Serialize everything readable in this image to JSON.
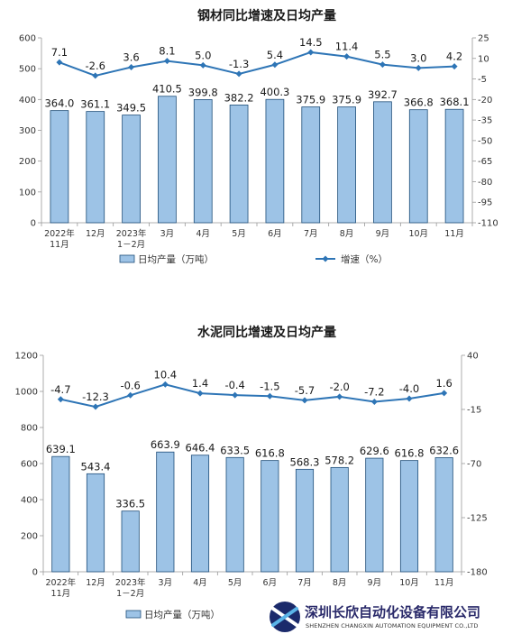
{
  "chart_data": [
    {
      "type": "bar+line",
      "title": "钢材同比增速及日均产量",
      "categories": [
        "2022年\n11月",
        "12月",
        "2023年\n1－2月",
        "3月",
        "4月",
        "5月",
        "6月",
        "7月",
        "8月",
        "9月",
        "10月",
        "11月"
      ],
      "series": [
        {
          "name": "日均产量（万吨）",
          "type": "bar",
          "axis": "left",
          "values": [
            364.0,
            361.1,
            349.5,
            410.5,
            399.8,
            382.2,
            400.3,
            375.9,
            375.9,
            392.7,
            366.8,
            368.1
          ],
          "labels": [
            "364.0",
            "361.1",
            "349.5",
            "410.5",
            "399.8",
            "382.2",
            "400.3",
            "375.9",
            "375.9",
            "392.7",
            "366.8",
            "368.1"
          ]
        },
        {
          "name": "增速（%）",
          "type": "line",
          "axis": "right",
          "values": [
            7.1,
            -2.6,
            3.6,
            8.1,
            5.0,
            -1.3,
            5.4,
            14.5,
            11.4,
            5.5,
            3.0,
            4.2
          ],
          "labels": [
            "7.1",
            "-2.6",
            "3.6",
            "8.1",
            "5.0",
            "-1.3",
            "5.4",
            "14.5",
            "11.4",
            "5.5",
            "3.0",
            "4.2"
          ]
        }
      ],
      "ylim_left": [
        0,
        600
      ],
      "yticks_left": [
        "0",
        "100",
        "200",
        "300",
        "400",
        "500",
        "600"
      ],
      "ylim_right": [
        -110,
        25
      ],
      "yticks_right": [
        "25",
        "10",
        "-5",
        "-20",
        "-35",
        "-50",
        "-65",
        "-80",
        "-95",
        "-110"
      ],
      "legend_position": "bottom",
      "colors": {
        "bar": "#9dc3e6",
        "bar_edge": "#1f4e79",
        "line": "#2e75b6"
      }
    },
    {
      "type": "bar+line",
      "title": "水泥同比增速及日均产量",
      "categories": [
        "2022年\n11月",
        "12月",
        "2023年\n1－2月",
        "3月",
        "4月",
        "5月",
        "6月",
        "7月",
        "8月",
        "9月",
        "10月",
        "11月"
      ],
      "series": [
        {
          "name": "日均产量（万吨）",
          "type": "bar",
          "axis": "left",
          "values": [
            639.1,
            543.4,
            336.5,
            663.9,
            646.4,
            633.5,
            616.8,
            568.3,
            578.2,
            629.6,
            616.8,
            632.6
          ],
          "labels": [
            "639.1",
            "543.4",
            "336.5",
            "663.9",
            "646.4",
            "633.5",
            "616.8",
            "568.3",
            "578.2",
            "629.6",
            "616.8",
            "632.6"
          ]
        },
        {
          "name": "",
          "type": "line",
          "axis": "right",
          "values": [
            -4.7,
            -12.3,
            -0.6,
            10.4,
            1.4,
            -0.4,
            -1.5,
            -5.7,
            -2.0,
            -7.2,
            -4.0,
            1.6
          ],
          "labels": [
            "-4.7",
            "-12.3",
            "-0.6",
            "10.4",
            "1.4",
            "-0.4",
            "-1.5",
            "-5.7",
            "-2.0",
            "-7.2",
            "-4.0",
            "1.6"
          ]
        }
      ],
      "ylim_left": [
        0,
        1200
      ],
      "yticks_left": [
        "0",
        "200",
        "400",
        "600",
        "800",
        "1000",
        "1200"
      ],
      "ylim_right": [
        -180,
        40
      ],
      "yticks_right": [
        "40",
        "-15",
        "-70",
        "-125",
        "-180"
      ],
      "legend_position": "bottom",
      "colors": {
        "bar": "#9dc3e6",
        "bar_edge": "#1f4e79",
        "line": "#2e75b6"
      }
    }
  ],
  "watermark": {
    "company_cn": "深圳长欣自动化设备有限公司",
    "company_en": "SHENZHEN CHANGXIN AUTOMATION EQUIPMENT CO.,LTD"
  }
}
